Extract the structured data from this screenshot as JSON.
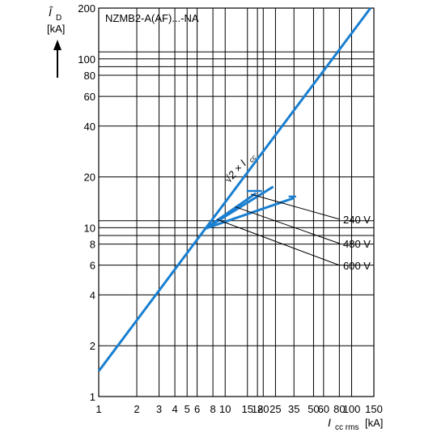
{
  "chart_data": {
    "type": "line",
    "title": "NZMB2-A(AF)...-NA",
    "x_scale": "log",
    "y_scale": "log",
    "xlim": [
      1,
      150
    ],
    "ylim": [
      1,
      200
    ],
    "grid": true,
    "xlabel": {
      "main": "I",
      "sub": "cc rms",
      "unit": "[kA]"
    },
    "ylabel": {
      "main": "Î",
      "sub": "D",
      "unit": "[kA]"
    },
    "x_ticks": [
      1,
      2,
      3,
      4,
      5,
      6,
      8,
      10,
      15,
      18,
      20,
      25,
      35,
      50,
      60,
      80,
      100,
      150
    ],
    "x_tick_labels": [
      "1",
      "2",
      "3",
      "4",
      "5",
      "6",
      "8",
      "10",
      "15",
      "18",
      "20",
      "25",
      "35",
      "50",
      "60",
      "80",
      "100",
      "150"
    ],
    "x_grid": [
      1,
      2,
      3,
      4,
      5,
      6,
      8,
      10,
      15,
      18,
      20,
      25,
      35,
      50,
      60,
      80,
      100,
      150
    ],
    "y_ticks": [
      1,
      2,
      4,
      6,
      8,
      10,
      20,
      40,
      60,
      80,
      100,
      200
    ],
    "y_tick_labels": [
      "1",
      "2",
      "4",
      "6",
      "8",
      "10",
      "20",
      "40",
      "60",
      "80",
      "100",
      "200"
    ],
    "y_grid": [
      1,
      2,
      4,
      6,
      8,
      9,
      10,
      11,
      20,
      40,
      60,
      80,
      90,
      100,
      110,
      200
    ],
    "series_color": "#1a7fd0",
    "reference_line": {
      "label_main": "√2 × I",
      "label_sub": "cc",
      "x": [
        1,
        141
      ],
      "y": [
        1.414,
        200
      ]
    },
    "series": [
      {
        "name": "240 V",
        "x": [
          7,
          24
        ],
        "y": [
          9.9,
          17.5
        ]
      },
      {
        "name": "480 V",
        "x": [
          7,
          17.5
        ],
        "y": [
          9.9,
          16
        ]
      },
      {
        "name": "600 V",
        "x": [
          7,
          35
        ],
        "y": [
          9.9,
          15
        ]
      }
    ],
    "series_markers": [
      {
        "x": 17,
        "y": 16.5,
        "w": 1.15
      },
      {
        "x": 34,
        "y": 15.3,
        "w": 1.07
      }
    ],
    "leaders": [
      {
        "from": [
          16,
          15.8
        ],
        "to": [
          420,
          271
        ]
      },
      {
        "from": [
          12,
          13.3
        ],
        "to": [
          420,
          301
        ]
      },
      {
        "from": [
          8.6,
          11.2
        ],
        "to": [
          420,
          328
        ]
      }
    ]
  }
}
